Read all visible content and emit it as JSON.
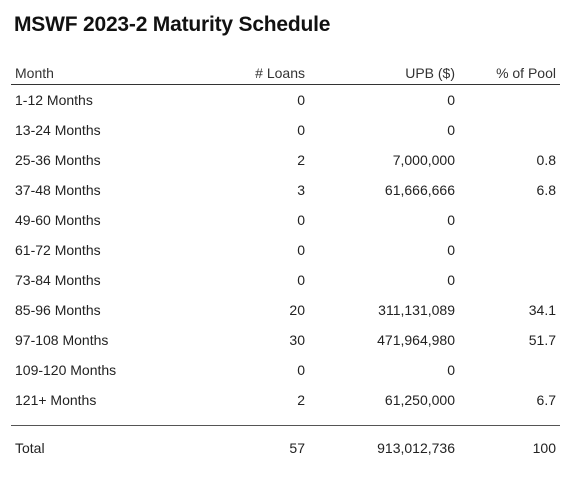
{
  "title": "MSWF 2023-2 Maturity Schedule",
  "columns": {
    "month": "Month",
    "loans": "# Loans",
    "upb": "UPB ($)",
    "pool": "% of Pool"
  },
  "rows": [
    {
      "month": "1-12 Months",
      "loans": "0",
      "upb": "0",
      "pool": ""
    },
    {
      "month": "13-24 Months",
      "loans": "0",
      "upb": "0",
      "pool": ""
    },
    {
      "month": "25-36 Months",
      "loans": "2",
      "upb": "7,000,000",
      "pool": "0.8"
    },
    {
      "month": "37-48 Months",
      "loans": "3",
      "upb": "61,666,666",
      "pool": "6.8"
    },
    {
      "month": "49-60 Months",
      "loans": "0",
      "upb": "0",
      "pool": ""
    },
    {
      "month": "61-72 Months",
      "loans": "0",
      "upb": "0",
      "pool": ""
    },
    {
      "month": "73-84 Months",
      "loans": "0",
      "upb": "0",
      "pool": ""
    },
    {
      "month": "85-96 Months",
      "loans": "20",
      "upb": "311,131,089",
      "pool": "34.1"
    },
    {
      "month": "97-108 Months",
      "loans": "30",
      "upb": "471,964,980",
      "pool": "51.7"
    },
    {
      "month": "109-120 Months",
      "loans": "0",
      "upb": "0",
      "pool": ""
    },
    {
      "month": "121+ Months",
      "loans": "2",
      "upb": "61,250,000",
      "pool": "6.7"
    }
  ],
  "total": {
    "month": "Total",
    "loans": "57",
    "upb": "913,012,736",
    "pool": "100"
  }
}
